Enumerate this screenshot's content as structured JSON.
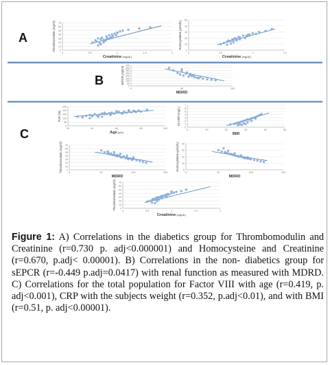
{
  "panels": {
    "a": {
      "letter": "A"
    },
    "b": {
      "letter": "B"
    },
    "c": {
      "letter": "C"
    }
  },
  "chart_data": [
    {
      "type": "scatter",
      "panel": "A",
      "ylabel": "Thrombomodulin (ng/ml)",
      "xlabel": "Creatinine",
      "xlabel_unit": "(mg/dL)",
      "xticks": [
        "0",
        "0.5",
        "1",
        "1.5",
        "2"
      ],
      "yticks": [
        "0",
        "10",
        "20",
        "30",
        "40",
        "50",
        "60",
        "70"
      ],
      "xlim": [
        0,
        2
      ],
      "ylim": [
        0,
        70
      ],
      "x": [
        0.55,
        0.6,
        0.62,
        0.65,
        0.68,
        0.7,
        0.72,
        0.75,
        0.78,
        0.8,
        0.82,
        0.85,
        0.88,
        0.9,
        0.92,
        0.95,
        0.98,
        1.0,
        1.05,
        1.1,
        0.7,
        0.75,
        0.8,
        0.85,
        0.9,
        1.0,
        1.2,
        1.4,
        1.6,
        0.65
      ],
      "y": [
        20,
        25,
        22,
        30,
        18,
        28,
        32,
        26,
        24,
        35,
        30,
        38,
        33,
        40,
        36,
        42,
        38,
        45,
        48,
        50,
        15,
        20,
        27,
        29,
        31,
        44,
        52,
        55,
        58,
        12
      ],
      "trendline": {
        "x": [
          0.5,
          1.8
        ],
        "y": [
          16,
          62
        ]
      },
      "point_color": "#7fa8d6"
    },
    {
      "type": "scatter",
      "panel": "A",
      "ylabel": "Homocysteine (μmol/L)",
      "xlabel": "Creatinine",
      "xlabel_unit": "(mg/dL)",
      "xticks": [
        "0",
        "0.5",
        "1",
        "1.5"
      ],
      "yticks": [
        "0",
        "10",
        "20",
        "30",
        "40",
        "50"
      ],
      "xlim": [
        0,
        1.5
      ],
      "ylim": [
        0,
        50
      ],
      "x": [
        0.5,
        0.55,
        0.6,
        0.62,
        0.65,
        0.68,
        0.7,
        0.72,
        0.75,
        0.78,
        0.8,
        0.85,
        0.9,
        0.95,
        1.0,
        1.05,
        1.1,
        1.2,
        0.7,
        0.75,
        0.8,
        0.88,
        0.92,
        1.3,
        0.6,
        0.66
      ],
      "y": [
        10,
        12,
        14,
        16,
        15,
        18,
        17,
        20,
        19,
        22,
        21,
        24,
        23,
        26,
        28,
        27,
        30,
        32,
        13,
        16,
        18,
        20,
        25,
        35,
        9,
        11
      ],
      "trendline": {
        "x": [
          0.45,
          1.35
        ],
        "y": [
          9,
          35
        ]
      },
      "point_color": "#7fa8d6"
    },
    {
      "type": "scatter",
      "panel": "B",
      "ylabel": "sEPCR (ng/ml)",
      "xlabel": "MDRD",
      "xticks": [
        "0",
        "50",
        "100"
      ],
      "yticks": [
        "0",
        "50",
        "100",
        "150",
        "200",
        "250",
        "300",
        "350",
        "400"
      ],
      "xlim": [
        0,
        120
      ],
      "ylim": [
        0,
        400
      ],
      "x": [
        45,
        50,
        55,
        58,
        60,
        62,
        65,
        68,
        70,
        72,
        75,
        78,
        80,
        85,
        90,
        95,
        100,
        60,
        70,
        82,
        66,
        74
      ],
      "y": [
        350,
        300,
        250,
        220,
        280,
        200,
        240,
        180,
        210,
        190,
        170,
        160,
        150,
        140,
        130,
        120,
        110,
        320,
        230,
        175,
        260,
        205
      ],
      "trendline": {
        "x": [
          40,
          110
        ],
        "y": [
          330,
          100
        ]
      },
      "point_color": "#7fa8d6"
    },
    {
      "type": "scatter",
      "panel": "C",
      "ylabel": "FVIII (%)",
      "xlabel": "Age",
      "xlabel_unit": "(yrs)",
      "xticks": [
        "20",
        "40",
        "60",
        "80",
        "100"
      ],
      "yticks": [
        "0",
        "50",
        "100",
        "150",
        "200",
        "250"
      ],
      "xlim": [
        20,
        100
      ],
      "ylim": [
        0,
        250
      ],
      "x": [
        28,
        32,
        35,
        38,
        40,
        42,
        44,
        46,
        48,
        50,
        52,
        54,
        56,
        58,
        60,
        62,
        64,
        66,
        68,
        70,
        72,
        74,
        76,
        78,
        80,
        45,
        55,
        65,
        75,
        50,
        60,
        70,
        85,
        38,
        48
      ],
      "y": [
        120,
        110,
        130,
        140,
        125,
        150,
        135,
        145,
        160,
        150,
        155,
        165,
        170,
        160,
        175,
        180,
        165,
        185,
        170,
        190,
        175,
        195,
        180,
        200,
        185,
        115,
        140,
        160,
        185,
        170,
        190,
        200,
        210,
        100,
        120
      ],
      "trendline": {
        "x": [
          25,
          90
        ],
        "y": [
          120,
          200
        ]
      },
      "point_color": "#7fa8d6"
    },
    {
      "type": "scatter",
      "panel": "C",
      "ylabel": "hs-CRP (mg/L)",
      "xlabel": "BMI",
      "xticks": [
        "0",
        "10",
        "20",
        "30",
        "40",
        "50"
      ],
      "yticks": [
        "0",
        "1",
        "2",
        "3",
        "4",
        "5",
        "6",
        "7"
      ],
      "xlim": [
        0,
        50
      ],
      "ylim": [
        0,
        7
      ],
      "x": [
        22,
        24,
        25,
        26,
        27,
        28,
        29,
        30,
        31,
        32,
        33,
        34,
        35,
        36,
        37,
        38,
        27,
        29,
        31,
        33,
        30,
        28,
        26,
        35
      ],
      "y": [
        0.8,
        1.0,
        1.2,
        1.4,
        1.5,
        1.8,
        2.0,
        2.2,
        2.5,
        2.4,
        2.8,
        3.0,
        3.2,
        3.5,
        3.8,
        4.2,
        0.9,
        1.2,
        1.6,
        2.0,
        1.0,
        0.7,
        0.6,
        2.7
      ],
      "trendline": {
        "x": [
          20,
          42
        ],
        "y": [
          0.5,
          4.5
        ]
      },
      "point_color": "#7fa8d6"
    },
    {
      "type": "scatter",
      "panel": "C",
      "ylabel": "Thrombomodulin (ng/ml)",
      "xlabel": "MDRD",
      "xticks": [
        "0",
        "50",
        "100",
        "150"
      ],
      "yticks": [
        "0",
        "10",
        "20",
        "30",
        "40",
        "50",
        "60",
        "70"
      ],
      "xlim": [
        0,
        150
      ],
      "ylim": [
        0,
        70
      ],
      "x": [
        50,
        55,
        60,
        62,
        65,
        68,
        70,
        72,
        75,
        78,
        80,
        82,
        85,
        88,
        90,
        92,
        95,
        98,
        100,
        105,
        110,
        115,
        120,
        70,
        80,
        90,
        100,
        60,
        75,
        85
      ],
      "y": [
        55,
        50,
        48,
        45,
        46,
        42,
        44,
        40,
        38,
        40,
        36,
        35,
        37,
        33,
        34,
        30,
        32,
        28,
        30,
        27,
        25,
        22,
        20,
        50,
        45,
        40,
        35,
        52,
        42,
        38
      ],
      "trendline": {
        "x": [
          40,
          130
        ],
        "y": [
          50,
          22
        ]
      },
      "point_color": "#7fa8d6"
    },
    {
      "type": "scatter",
      "panel": "C",
      "ylabel": "Homocysteine (μmol/L)",
      "xlabel": "MDRD",
      "xticks": [
        "0",
        "50",
        "100",
        "150"
      ],
      "yticks": [
        "0",
        "10",
        "20",
        "30",
        "40"
      ],
      "xlim": [
        0,
        150
      ],
      "ylim": [
        0,
        40
      ],
      "x": [
        50,
        55,
        60,
        62,
        65,
        68,
        70,
        72,
        75,
        78,
        80,
        82,
        85,
        88,
        90,
        92,
        95,
        98,
        100,
        105,
        110,
        115,
        65,
        75,
        85,
        95,
        58,
        120
      ],
      "y": [
        30,
        28,
        27,
        26,
        25,
        24,
        24,
        23,
        22,
        21,
        21,
        20,
        20,
        19,
        18,
        18,
        17,
        17,
        16,
        15,
        14,
        13,
        29,
        25,
        22,
        19,
        33,
        12
      ],
      "trendline": {
        "x": [
          40,
          125
        ],
        "y": [
          28,
          14
        ]
      },
      "point_color": "#7fa8d6"
    },
    {
      "type": "scatter",
      "panel": "C",
      "ylabel": "Thrombomodulin (ng/ml)",
      "xlabel": "Creatinine",
      "xlabel_unit": "(mg/dL)",
      "xticks": [
        "0",
        "0.5",
        "1",
        "1.5",
        "2"
      ],
      "yticks": [
        "0",
        "10",
        "20",
        "30",
        "40",
        "50",
        "60",
        "70"
      ],
      "xlim": [
        0,
        2
      ],
      "ylim": [
        0,
        70
      ],
      "x": [
        0.5,
        0.55,
        0.6,
        0.62,
        0.65,
        0.68,
        0.7,
        0.72,
        0.75,
        0.78,
        0.8,
        0.82,
        0.85,
        0.88,
        0.9,
        0.92,
        0.95,
        1.0,
        1.05,
        1.1,
        1.2,
        1.3,
        0.6,
        0.7,
        0.8,
        0.9,
        1.0,
        0.66,
        0.74
      ],
      "y": [
        18,
        20,
        22,
        25,
        24,
        28,
        26,
        30,
        29,
        32,
        31,
        34,
        33,
        36,
        35,
        38,
        37,
        40,
        42,
        44,
        46,
        50,
        15,
        19,
        27,
        30,
        45,
        14,
        23
      ],
      "trendline": {
        "x": [
          0.45,
          1.8
        ],
        "y": [
          15,
          58
        ]
      },
      "point_color": "#7fa8d6"
    }
  ],
  "caption": {
    "label": "Figure 1:",
    "text": "A) Correlations in the diabetics group for Thrombomodulin and Creatinine (r=0.730 p. adj<0.000001) and Homocysteine and Creatinine (r=0.670, p.adj< 0.00001). B) Correlations in the non- diabetics group for sEPCR (r=-0.449 p.adj=0.0417) with renal function as measured with MDRD. C) Correlations for the total population for Factor VIII with age (r=0.419, p. adj<0.001), CRP with the subjects weight (r=0.352, p.adj<0.01), and with BMI (r=0.51, p. adj<0.00001)."
  },
  "colors": {
    "divider": "#6f93bd",
    "border": "#9aa6b8",
    "points": "#7fa8d6",
    "trendline": "#4a78b0"
  }
}
